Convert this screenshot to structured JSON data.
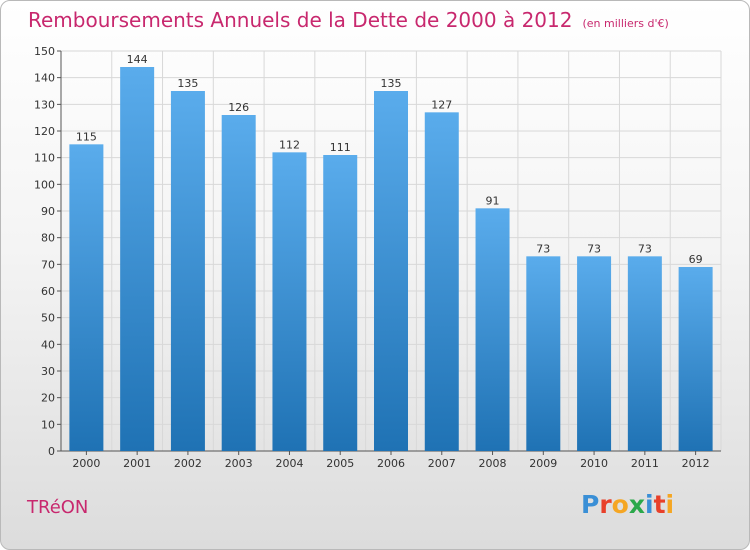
{
  "chart_data": {
    "type": "bar",
    "title": "Remboursements Annuels de la Dette de 2000 à 2012",
    "subtitle": "(en milliers d'€)",
    "categories": [
      "2000",
      "2001",
      "2002",
      "2003",
      "2004",
      "2005",
      "2006",
      "2007",
      "2008",
      "2009",
      "2010",
      "2011",
      "2012"
    ],
    "values": [
      115,
      144,
      135,
      126,
      112,
      111,
      135,
      127,
      91,
      73,
      73,
      73,
      69
    ],
    "ylim": [
      0,
      150
    ],
    "yticks": [
      0,
      10,
      20,
      30,
      40,
      50,
      60,
      70,
      80,
      90,
      100,
      110,
      120,
      130,
      140,
      150
    ],
    "grid": true,
    "xlabel": "",
    "ylabel": "",
    "colors": {
      "bar_top": "#5aacec",
      "bar_bottom": "#1f72b4",
      "title": "#c8286e",
      "grid": "#d8d8d8"
    }
  },
  "footer": {
    "town": "TRéON",
    "logo_text": "Proxiti",
    "logo_colors": [
      "#3a8fd6",
      "#e8402a",
      "#f5a623",
      "#2aa84a",
      "#3a8fd6",
      "#e8402a",
      "#f5a623"
    ]
  }
}
